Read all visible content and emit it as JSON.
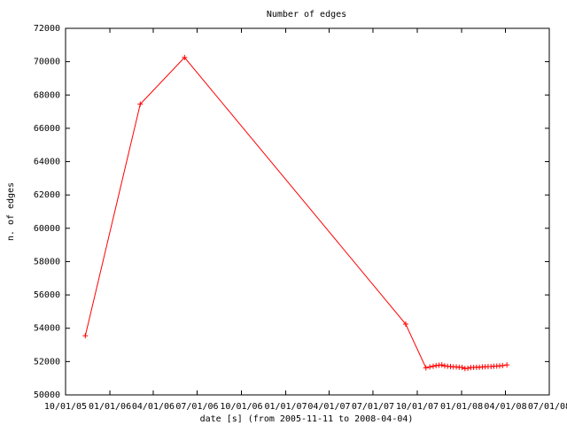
{
  "chart_data": {
    "type": "line",
    "title": "Number of edges",
    "xlabel": "date [s] (from 2005-11-11 to 2008-04-04)",
    "ylabel": "n. of edges",
    "xlim": [
      "2005-10-01",
      "2008-07-01"
    ],
    "ylim": [
      50000,
      72000
    ],
    "x_ticks": [
      "2005-10-01",
      "2006-01-01",
      "2006-04-01",
      "2006-07-01",
      "2006-10-01",
      "2007-01-01",
      "2007-04-01",
      "2007-07-01",
      "2007-10-01",
      "2008-01-01",
      "2008-04-01",
      "2008-07-01"
    ],
    "x_tick_labels": [
      "10/01/05",
      "01/01/06",
      "04/01/06",
      "07/01/06",
      "10/01/06",
      "01/01/07",
      "04/01/07",
      "07/01/07",
      "10/01/07",
      "01/01/08",
      "04/01/08",
      "07/01/08"
    ],
    "y_ticks": [
      50000,
      52000,
      54000,
      56000,
      58000,
      60000,
      62000,
      64000,
      66000,
      68000,
      70000,
      72000
    ],
    "y_tick_labels": [
      "50000",
      "52000",
      "54000",
      "56000",
      "58000",
      "60000",
      "62000",
      "64000",
      "66000",
      "68000",
      "70000",
      "72000"
    ],
    "grid": false,
    "series": [
      {
        "color": "#ff0000",
        "marker": "plus",
        "x": [
          "2005-11-11",
          "2006-03-05",
          "2006-06-05",
          "2007-09-07",
          "2007-10-19",
          "2007-10-27",
          "2007-11-03",
          "2007-11-09",
          "2007-11-15",
          "2007-11-21",
          "2007-11-27",
          "2007-12-03",
          "2007-12-09",
          "2007-12-15",
          "2007-12-21",
          "2007-12-27",
          "2008-01-02",
          "2008-01-08",
          "2008-01-14",
          "2008-01-20",
          "2008-01-26",
          "2008-02-01",
          "2008-02-07",
          "2008-02-13",
          "2008-02-19",
          "2008-02-25",
          "2008-03-02",
          "2008-03-08",
          "2008-03-14",
          "2008-03-20",
          "2008-03-26",
          "2008-04-04"
        ],
        "values": [
          53550,
          67450,
          70250,
          54250,
          51620,
          51680,
          51720,
          51760,
          51780,
          51800,
          51740,
          51720,
          51700,
          51680,
          51680,
          51660,
          51650,
          51580,
          51600,
          51640,
          51650,
          51660,
          51660,
          51680,
          51690,
          51700,
          51700,
          51720,
          51730,
          51740,
          51760,
          51800
        ]
      }
    ]
  }
}
